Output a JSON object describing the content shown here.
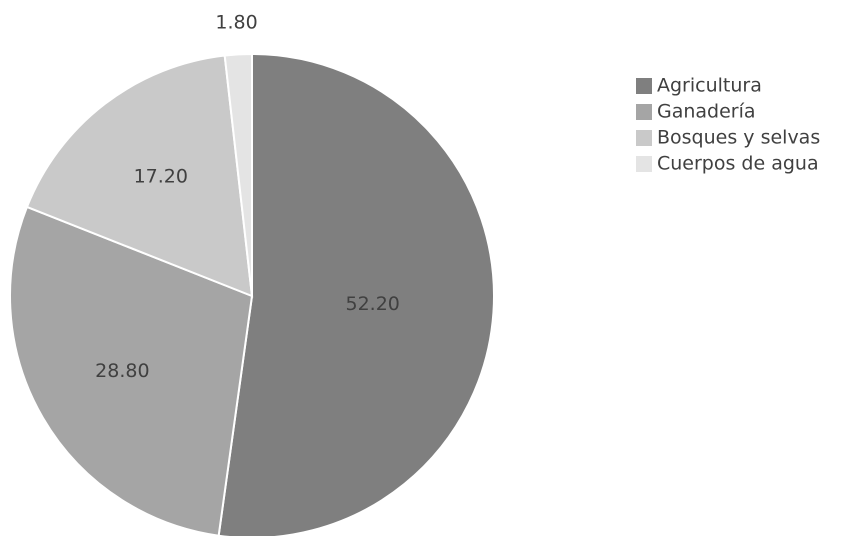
{
  "chart_data": {
    "type": "pie",
    "start_angle_deg": 0,
    "direction": "clockwise",
    "legend_position": "right",
    "slices": [
      {
        "label": "Agricultura",
        "value": 52.2,
        "value_label": "52.20",
        "color": "#7f7f7f"
      },
      {
        "label": "Ganadería",
        "value": 28.8,
        "value_label": "28.80",
        "color": "#a5a5a5"
      },
      {
        "label": "Bosques y selvas",
        "value": 17.2,
        "value_label": "17.20",
        "color": "#c9c9c9"
      },
      {
        "label": "Cuerpos de agua",
        "value": 1.8,
        "value_label": "1.80",
        "color": "#e4e4e4"
      }
    ]
  }
}
